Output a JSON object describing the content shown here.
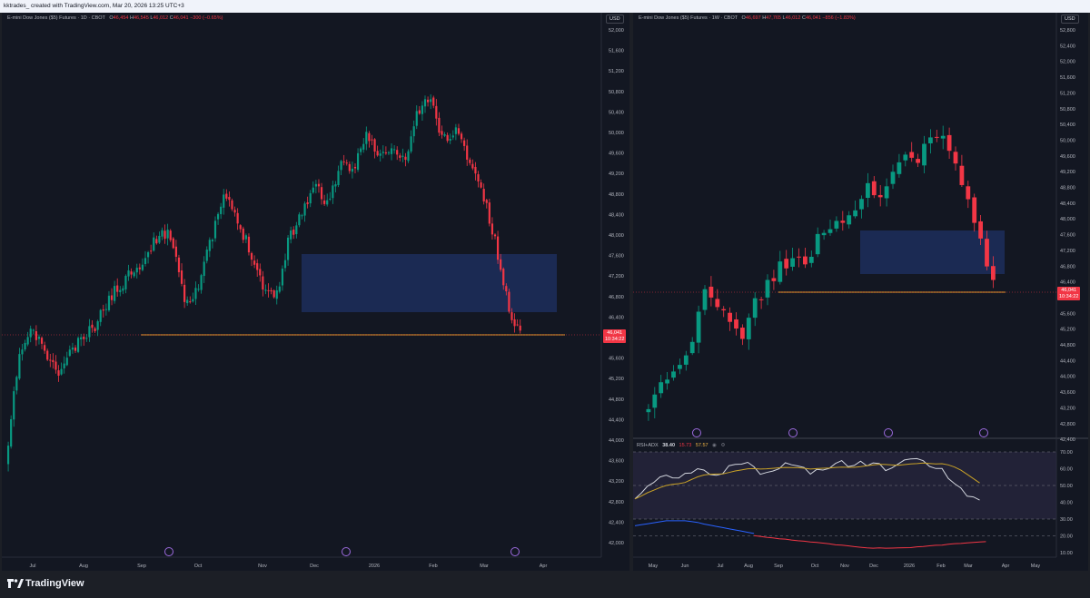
{
  "header": {
    "caption": "kktrades_ created with TradingView.com, Mar 20, 2026 13:25 UTC+3"
  },
  "left_chart": {
    "title": "E-mini Dow Jones ($5) Futures · 1D · CBOT",
    "ohlc": {
      "o": "46,454",
      "h": "46,545",
      "l": "46,012",
      "c": "46,041",
      "change": "−300 (−0.65%)"
    },
    "currency": "USD",
    "price_tag": {
      "price": "46,041",
      "countdown": "10:34:22"
    },
    "y_labels": [
      "52,000",
      "51,600",
      "51,200",
      "50,800",
      "50,400",
      "50,000",
      "49,600",
      "49,200",
      "48,800",
      "48,400",
      "48,000",
      "47,600",
      "47,200",
      "46,800",
      "46,400",
      "46,000",
      "45,600",
      "45,200",
      "44,800",
      "44,400",
      "44,000",
      "43,600",
      "43,200",
      "42,800",
      "42,400",
      "42,000"
    ],
    "x_labels": [
      "Jul",
      "Aug",
      "Sep",
      "Oct",
      "Nov",
      "Dec",
      "2026",
      "Feb",
      "Mar",
      "Apr"
    ]
  },
  "right_chart": {
    "title": "E-mini Dow Jones ($5) Futures · 1W · CBOT",
    "ohlc": {
      "o": "46,697",
      "h": "47,765",
      "l": "46,012",
      "c": "46,041",
      "change": "−856 (−1.83%)"
    },
    "currency": "USD",
    "price_tag": {
      "price": "46,041",
      "countdown": "10:34:22"
    },
    "y_labels": [
      "52,800",
      "52,400",
      "52,000",
      "51,600",
      "51,200",
      "50,800",
      "50,400",
      "50,000",
      "49,600",
      "49,200",
      "48,800",
      "48,400",
      "48,000",
      "47,600",
      "47,200",
      "46,800",
      "46,400",
      "46,000",
      "45,600",
      "45,200",
      "44,800",
      "44,400",
      "44,000",
      "43,600",
      "43,200",
      "42,800",
      "42,400"
    ],
    "x_labels": [
      "May",
      "Jun",
      "Jul",
      "Aug",
      "Sep",
      "Oct",
      "Nov",
      "Dec",
      "2026",
      "Feb",
      "Mar",
      "Apr",
      "May"
    ],
    "rsi": {
      "label": "RSI+ADX",
      "values": [
        "38.40",
        "15.73",
        "57.57"
      ],
      "icons": [
        "eye-icon",
        "settings-icon"
      ],
      "y_labels": [
        "70.00",
        "60.00",
        "50.00",
        "40.00",
        "30.00",
        "20.00",
        "10.00"
      ]
    }
  },
  "footer": {
    "brand": "TradingView"
  },
  "colors": {
    "up": "#089981",
    "down": "#f23645",
    "zone": "#1d2e5c",
    "level": "#f0a12a",
    "bg": "#131722"
  }
}
